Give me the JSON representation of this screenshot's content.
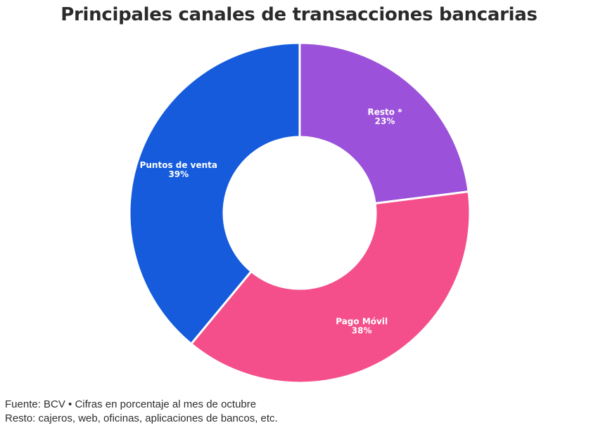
{
  "title": "Principales canales de transacciones bancarias",
  "footer": {
    "line1": "Fuente: BCV • Cifras en porcentaje al mes de octubre",
    "line2": "Resto: cajeros, web, oficinas, aplicaciones de bancos, etc."
  },
  "chart_data": {
    "type": "pie",
    "variant": "donut",
    "title": "Principales canales de transacciones bancarias",
    "start_angle": "12 o'clock, clockwise",
    "categories": [
      "Resto *",
      "Pago Móvil",
      "Puntos de venta"
    ],
    "values": [
      23,
      38,
      39
    ],
    "unit": "%",
    "labels": [
      "23%",
      "38%",
      "39%"
    ],
    "colors": [
      "#9b51d9",
      "#f44f8a",
      "#155bdc"
    ],
    "legend": "none (labels inside slices)"
  }
}
